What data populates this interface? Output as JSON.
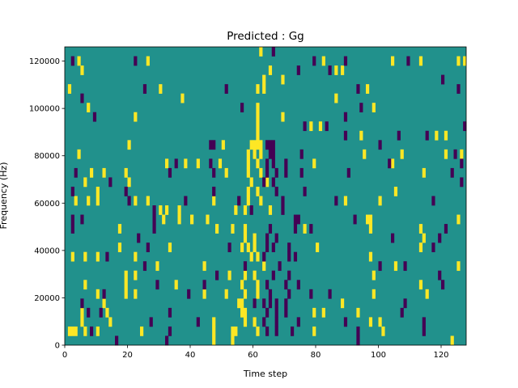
{
  "chart_data": {
    "type": "heatmap",
    "title": "Predicted : Gg",
    "xlabel": "Time step",
    "ylabel": "Frequency (Hz)",
    "xlim": [
      0,
      128
    ],
    "ylim": [
      0,
      126000
    ],
    "xticks": [
      0,
      20,
      40,
      60,
      80,
      100,
      120
    ],
    "yticks": [
      0,
      20000,
      40000,
      60000,
      80000,
      100000,
      120000
    ],
    "xtick_labels": [
      "0",
      "20",
      "40",
      "60",
      "80",
      "100",
      "120"
    ],
    "ytick_labels": [
      "0",
      "20000",
      "40000",
      "60000",
      "80000",
      "100000",
      "120000"
    ],
    "n_time_steps": 128,
    "n_freq_bins": 32,
    "grid": false,
    "colormap": "viridis",
    "colors": {
      "low": "#440154",
      "mid": "#21918c",
      "high": "#fde725"
    },
    "background_value": 0,
    "cells_high": [
      [
        62,
        31
      ],
      [
        4,
        30
      ],
      [
        26,
        30
      ],
      [
        82,
        30
      ],
      [
        104,
        30
      ],
      [
        113,
        30
      ],
      [
        125,
        30
      ],
      [
        127,
        30
      ],
      [
        5,
        29
      ],
      [
        86,
        29
      ],
      [
        65,
        29
      ],
      [
        88,
        29
      ],
      [
        69,
        28
      ],
      [
        63,
        28
      ],
      [
        1,
        27
      ],
      [
        30,
        27
      ],
      [
        61,
        27
      ],
      [
        63,
        27
      ],
      [
        96,
        27
      ],
      [
        37,
        26
      ],
      [
        86,
        26
      ],
      [
        7,
        25
      ],
      [
        61,
        25
      ],
      [
        98,
        25
      ],
      [
        22,
        24
      ],
      [
        61,
        24
      ],
      [
        69,
        24
      ],
      [
        78,
        23
      ],
      [
        81,
        23
      ],
      [
        61,
        23
      ],
      [
        94,
        22
      ],
      [
        118,
        22
      ],
      [
        121,
        22
      ],
      [
        61,
        22
      ],
      [
        20,
        21
      ],
      [
        50,
        21
      ],
      [
        59,
        21
      ],
      [
        61,
        21
      ],
      [
        60,
        21
      ],
      [
        62,
        21
      ],
      [
        4,
        20
      ],
      [
        58,
        20
      ],
      [
        60,
        20
      ],
      [
        62,
        20
      ],
      [
        95,
        20
      ],
      [
        107,
        20
      ],
      [
        121,
        20
      ],
      [
        126,
        20
      ],
      [
        32,
        19
      ],
      [
        38,
        19
      ],
      [
        42,
        19
      ],
      [
        49,
        19
      ],
      [
        58,
        19
      ],
      [
        61,
        19
      ],
      [
        79,
        19
      ],
      [
        104,
        19
      ],
      [
        8,
        18
      ],
      [
        12,
        18
      ],
      [
        19,
        18
      ],
      [
        51,
        18
      ],
      [
        58,
        18
      ],
      [
        62,
        18
      ],
      [
        114,
        18
      ],
      [
        6,
        17
      ],
      [
        20,
        17
      ],
      [
        64,
        17
      ],
      [
        59,
        17
      ],
      [
        10,
        16
      ],
      [
        58,
        16
      ],
      [
        61,
        16
      ],
      [
        105,
        16
      ],
      [
        3,
        15
      ],
      [
        7,
        15
      ],
      [
        10,
        15
      ],
      [
        22,
        15
      ],
      [
        26,
        15
      ],
      [
        47,
        15
      ],
      [
        58,
        15
      ],
      [
        62,
        15
      ],
      [
        89,
        15
      ],
      [
        100,
        15
      ],
      [
        30,
        14
      ],
      [
        32,
        14
      ],
      [
        36,
        14
      ],
      [
        54,
        14
      ],
      [
        57,
        14
      ],
      [
        65,
        14
      ],
      [
        31,
        13
      ],
      [
        36,
        13
      ],
      [
        40,
        13
      ],
      [
        45,
        13
      ],
      [
        96,
        13
      ],
      [
        97,
        13
      ],
      [
        125,
        13
      ],
      [
        17,
        12
      ],
      [
        48,
        12
      ],
      [
        53,
        12
      ],
      [
        57,
        12
      ],
      [
        76,
        12
      ],
      [
        97,
        12
      ],
      [
        113,
        12
      ],
      [
        60,
        11
      ],
      [
        57,
        11
      ],
      [
        114,
        11
      ],
      [
        17,
        10
      ],
      [
        33,
        10
      ],
      [
        56,
        10
      ],
      [
        58,
        10
      ],
      [
        60,
        10
      ],
      [
        80,
        10
      ],
      [
        113,
        10
      ],
      [
        2,
        9
      ],
      [
        6,
        9
      ],
      [
        10,
        9
      ],
      [
        22,
        9
      ],
      [
        59,
        9
      ],
      [
        61,
        9
      ],
      [
        97,
        9
      ],
      [
        29,
        8
      ],
      [
        44,
        8
      ],
      [
        63,
        8
      ],
      [
        105,
        8
      ],
      [
        125,
        8
      ],
      [
        19,
        7
      ],
      [
        22,
        7
      ],
      [
        52,
        7
      ],
      [
        57,
        7
      ],
      [
        60,
        7
      ],
      [
        98,
        7
      ],
      [
        6,
        6
      ],
      [
        19,
        6
      ],
      [
        35,
        6
      ],
      [
        56,
        6
      ],
      [
        61,
        6
      ],
      [
        113,
        6
      ],
      [
        10,
        5
      ],
      [
        19,
        5
      ],
      [
        22,
        5
      ],
      [
        44,
        5
      ],
      [
        51,
        5
      ],
      [
        57,
        5
      ],
      [
        61,
        5
      ],
      [
        98,
        5
      ],
      [
        115,
        5
      ],
      [
        12,
        4
      ],
      [
        55,
        4
      ],
      [
        56,
        4
      ],
      [
        88,
        4
      ],
      [
        5,
        3
      ],
      [
        13,
        3
      ],
      [
        56,
        3
      ],
      [
        57,
        3
      ],
      [
        79,
        3
      ],
      [
        82,
        3
      ],
      [
        93,
        3
      ],
      [
        5,
        2
      ],
      [
        14,
        2
      ],
      [
        47,
        2
      ],
      [
        57,
        2
      ],
      [
        60,
        2
      ],
      [
        97,
        2
      ],
      [
        100,
        2
      ],
      [
        1,
        1
      ],
      [
        2,
        1
      ],
      [
        3,
        1
      ],
      [
        6,
        1
      ],
      [
        10,
        1
      ],
      [
        24,
        1
      ],
      [
        47,
        1
      ],
      [
        53,
        1
      ],
      [
        54,
        1
      ],
      [
        61,
        1
      ],
      [
        79,
        1
      ],
      [
        101,
        1
      ],
      [
        47,
        0
      ],
      [
        53,
        0
      ],
      [
        123,
        0
      ]
    ],
    "cells_low": [
      [
        66,
        31
      ],
      [
        2,
        30
      ],
      [
        22,
        30
      ],
      [
        79,
        30
      ],
      [
        89,
        30
      ],
      [
        109,
        30
      ],
      [
        74,
        29
      ],
      [
        84,
        29
      ],
      [
        120,
        28
      ],
      [
        25,
        27
      ],
      [
        51,
        27
      ],
      [
        93,
        27
      ],
      [
        125,
        27
      ],
      [
        5,
        26
      ],
      [
        56,
        25
      ],
      [
        94,
        25
      ],
      [
        9,
        24
      ],
      [
        89,
        24
      ],
      [
        76,
        23
      ],
      [
        83,
        23
      ],
      [
        127,
        23
      ],
      [
        89,
        22
      ],
      [
        115,
        22
      ],
      [
        106,
        22
      ],
      [
        46,
        21
      ],
      [
        47,
        21
      ],
      [
        64,
        21
      ],
      [
        65,
        21
      ],
      [
        66,
        21
      ],
      [
        100,
        21
      ],
      [
        65,
        20
      ],
      [
        66,
        20
      ],
      [
        75,
        20
      ],
      [
        124,
        20
      ],
      [
        35,
        19
      ],
      [
        46,
        19
      ],
      [
        64,
        19
      ],
      [
        66,
        19
      ],
      [
        103,
        19
      ],
      [
        126,
        19
      ],
      [
        70,
        19
      ],
      [
        3,
        18
      ],
      [
        33,
        18
      ],
      [
        47,
        18
      ],
      [
        64,
        18
      ],
      [
        67,
        18
      ],
      [
        70,
        18
      ],
      [
        90,
        18
      ],
      [
        123,
        18
      ],
      [
        75,
        18
      ],
      [
        14,
        17
      ],
      [
        66,
        17
      ],
      [
        126,
        17
      ],
      [
        63,
        17
      ],
      [
        2,
        16
      ],
      [
        19,
        16
      ],
      [
        47,
        16
      ],
      [
        67,
        16
      ],
      [
        76,
        16
      ],
      [
        20,
        15
      ],
      [
        38,
        15
      ],
      [
        55,
        15
      ],
      [
        69,
        15
      ],
      [
        86,
        15
      ],
      [
        117,
        15
      ],
      [
        28,
        14
      ],
      [
        59,
        14
      ],
      [
        69,
        14
      ],
      [
        2,
        13
      ],
      [
        5,
        13
      ],
      [
        28,
        13
      ],
      [
        92,
        13
      ],
      [
        73,
        13
      ],
      [
        74,
        13
      ],
      [
        2,
        12
      ],
      [
        28,
        12
      ],
      [
        65,
        12
      ],
      [
        73,
        12
      ],
      [
        78,
        12
      ],
      [
        121,
        12
      ],
      [
        23,
        11
      ],
      [
        64,
        11
      ],
      [
        67,
        11
      ],
      [
        104,
        11
      ],
      [
        119,
        11
      ],
      [
        26,
        10
      ],
      [
        52,
        10
      ],
      [
        64,
        10
      ],
      [
        66,
        10
      ],
      [
        71,
        10
      ],
      [
        117,
        10
      ],
      [
        13,
        9
      ],
      [
        63,
        9
      ],
      [
        71,
        9
      ],
      [
        73,
        9
      ],
      [
        25,
        8
      ],
      [
        57,
        8
      ],
      [
        68,
        8
      ],
      [
        108,
        8
      ],
      [
        100,
        8
      ],
      [
        48,
        7
      ],
      [
        66,
        7
      ],
      [
        71,
        7
      ],
      [
        119,
        7
      ],
      [
        29,
        6
      ],
      [
        44,
        6
      ],
      [
        64,
        6
      ],
      [
        70,
        6
      ],
      [
        74,
        6
      ],
      [
        120,
        6
      ],
      [
        12,
        5
      ],
      [
        39,
        5
      ],
      [
        65,
        5
      ],
      [
        71,
        5
      ],
      [
        78,
        5
      ],
      [
        84,
        5
      ],
      [
        5,
        4
      ],
      [
        60,
        4
      ],
      [
        63,
        4
      ],
      [
        65,
        4
      ],
      [
        67,
        4
      ],
      [
        70,
        4
      ],
      [
        108,
        4
      ],
      [
        7,
        3
      ],
      [
        11,
        3
      ],
      [
        33,
        3
      ],
      [
        64,
        3
      ],
      [
        67,
        3
      ],
      [
        70,
        3
      ],
      [
        107,
        3
      ],
      [
        27,
        2
      ],
      [
        42,
        2
      ],
      [
        63,
        2
      ],
      [
        67,
        2
      ],
      [
        74,
        2
      ],
      [
        89,
        2
      ],
      [
        114,
        2
      ],
      [
        8,
        1
      ],
      [
        33,
        1
      ],
      [
        64,
        1
      ],
      [
        67,
        1
      ],
      [
        72,
        1
      ],
      [
        114,
        1
      ],
      [
        93,
        1
      ],
      [
        16,
        0
      ],
      [
        32,
        0
      ],
      [
        93,
        0
      ]
    ]
  }
}
